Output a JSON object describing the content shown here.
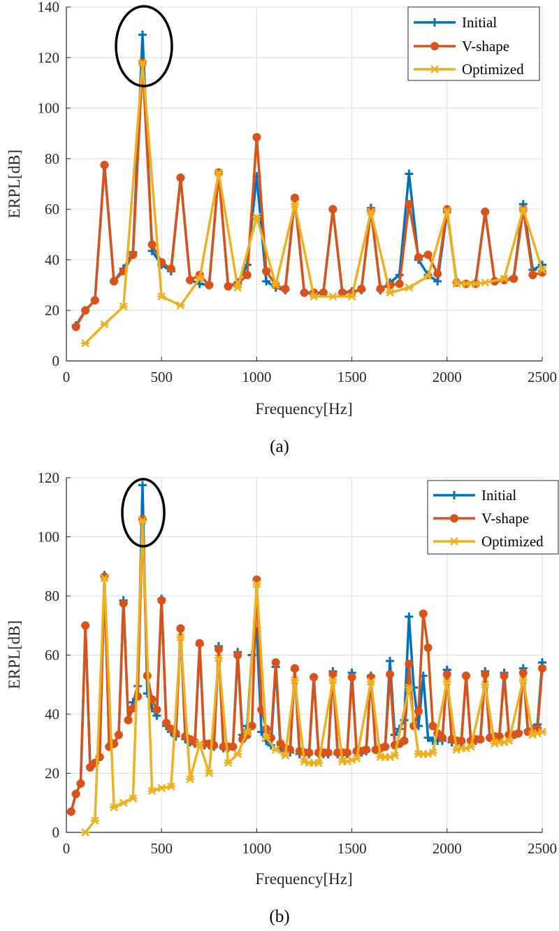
{
  "colors": {
    "Initial": "#0072BD",
    "V-shape": "#D95319",
    "Optimized": "#EDB120"
  },
  "chart_data": [
    {
      "type": "line",
      "caption": "(a)",
      "xlabel": "Frequency[Hz]",
      "ylabel": "ERPL[dB]",
      "xlim": [
        0,
        2500
      ],
      "ylim": [
        0,
        140
      ],
      "xticks": [
        0,
        500,
        1000,
        1500,
        2000,
        2500
      ],
      "yticks": [
        0,
        20,
        40,
        60,
        80,
        100,
        120,
        140
      ],
      "grid": true,
      "legend": {
        "placement": "top-right",
        "entries": [
          "Initial",
          "V-shape",
          "Optimized"
        ]
      },
      "annotation": "ellipse around peak near 400 Hz",
      "series": [
        {
          "name": "Initial",
          "marker": "plus",
          "x_start": 50,
          "x_step": 50,
          "y": [
            14,
            20,
            24,
            77.5,
            31.5,
            36.5,
            43,
            129,
            43.5,
            38,
            35.5,
            72.5,
            32,
            30.5,
            30,
            74.5,
            29.5,
            31,
            38,
            73,
            31.5,
            29,
            28,
            64,
            27,
            26.5,
            27,
            60,
            27,
            27.5,
            28,
            60.5,
            28,
            31,
            34,
            74,
            40,
            34,
            31.5,
            59,
            31,
            30.5,
            31,
            59,
            31.5,
            32,
            33,
            62,
            36,
            38
          ]
        },
        {
          "name": "V-shape",
          "marker": "circle",
          "x_start": 50,
          "x_step": 50,
          "y": [
            13.5,
            20,
            24,
            77.5,
            31.5,
            35.5,
            42,
            118,
            46,
            39,
            36.5,
            72.5,
            32,
            34,
            30,
            74.5,
            29.5,
            30.5,
            34,
            88.5,
            35.5,
            30,
            28.5,
            64.5,
            27,
            27,
            27,
            60,
            27,
            27,
            28.5,
            59.5,
            28.5,
            30,
            30.5,
            62,
            41,
            42,
            34.5,
            60,
            31,
            30.5,
            30.5,
            59,
            31.5,
            32,
            32.5,
            60,
            34,
            35
          ]
        },
        {
          "name": "Optimized",
          "marker": "star",
          "points": [
            [
              100,
              7
            ],
            [
              200,
              14.5
            ],
            [
              300,
              21.5
            ],
            [
              400,
              118
            ],
            [
              500,
              25.5
            ],
            [
              600,
              22
            ],
            [
              700,
              32.5
            ],
            [
              800,
              74.5
            ],
            [
              900,
              29
            ],
            [
              1000,
              57
            ],
            [
              1100,
              30
            ],
            [
              1200,
              62
            ],
            [
              1300,
              25.5
            ],
            [
              1400,
              25.5
            ],
            [
              1500,
              25.5
            ],
            [
              1600,
              59
            ],
            [
              1700,
              27
            ],
            [
              1800,
              29
            ],
            [
              1900,
              33.5
            ],
            [
              2000,
              59.5
            ],
            [
              2050,
              30.5
            ],
            [
              2100,
              30.5
            ],
            [
              2150,
              30.5
            ],
            [
              2200,
              31
            ],
            [
              2300,
              32.5
            ],
            [
              2400,
              60
            ],
            [
              2500,
              36
            ]
          ]
        }
      ]
    },
    {
      "type": "line",
      "caption": "(b)",
      "xlabel": "Frequency[Hz]",
      "ylabel": "ERPL[dB]",
      "xlim": [
        0,
        2500
      ],
      "ylim": [
        0,
        120
      ],
      "xticks": [
        0,
        500,
        1000,
        1500,
        2000,
        2500
      ],
      "yticks": [
        0,
        20,
        40,
        60,
        80,
        100,
        120
      ],
      "grid": true,
      "legend": {
        "placement": "top-right",
        "entries": [
          "Initial",
          "V-shape",
          "Optimized"
        ]
      },
      "annotation": "ellipse around peak near 400 Hz",
      "series": [
        {
          "name": "Initial",
          "marker": "plus",
          "x_start": 25,
          "x_step": 25,
          "y": [
            7,
            13,
            16.5,
            70,
            22,
            23.5,
            25.5,
            87,
            29,
            30,
            33,
            78.5,
            38,
            44,
            49.5,
            117.5,
            47,
            42,
            39.5,
            79,
            36,
            34,
            32.5,
            69,
            31.5,
            30.5,
            30,
            63.5,
            29.5,
            29.5,
            29,
            63,
            28.5,
            28.5,
            29,
            61,
            33,
            36,
            60,
            68,
            34,
            31,
            29.5,
            56,
            28.5,
            27.5,
            27,
            55,
            26.5,
            26.5,
            26.5,
            52.5,
            26.5,
            26.5,
            26.5,
            54.5,
            26.5,
            26.5,
            26.5,
            54,
            27,
            27,
            27.5,
            53,
            28,
            28.5,
            29,
            58,
            33,
            35,
            38,
            73,
            49,
            36,
            53,
            32,
            31,
            31,
            31,
            55,
            30.5,
            30.5,
            30.5,
            53,
            31,
            31,
            31.5,
            54.5,
            32,
            32,
            32.5,
            54,
            33,
            33,
            34,
            55.5,
            34.5,
            35,
            36.5,
            57.5
          ]
        },
        {
          "name": "V-shape",
          "marker": "circle",
          "x_start": 25,
          "x_step": 25,
          "y": [
            7,
            13,
            16.5,
            70,
            22,
            23.5,
            25.5,
            86.5,
            29,
            30,
            33,
            77.5,
            38,
            42,
            46,
            106,
            53,
            45,
            41.5,
            78.5,
            37,
            35,
            33.5,
            69,
            32.5,
            31.5,
            30.5,
            64,
            30,
            30,
            29.5,
            62,
            29,
            29,
            29,
            60,
            31.5,
            33,
            36,
            85.5,
            41.5,
            35,
            32,
            57.5,
            30,
            28.5,
            28,
            55.5,
            27.5,
            27,
            27,
            52.5,
            27,
            27,
            27,
            53.5,
            27,
            27,
            27,
            52.5,
            27.5,
            27.5,
            28,
            52.5,
            28,
            28.5,
            29,
            53.5,
            29.5,
            30,
            31,
            57,
            36,
            41,
            74,
            62.5,
            36,
            33.5,
            32,
            53.5,
            31.5,
            31,
            31,
            53,
            31,
            31.5,
            31.5,
            53.5,
            32,
            32.5,
            32.5,
            53,
            33,
            33,
            33.5,
            54,
            34,
            34.5,
            35,
            55.5
          ]
        },
        {
          "name": "Optimized",
          "marker": "star",
          "points": [
            [
              100,
              0
            ],
            [
              150,
              4
            ],
            [
              200,
              86
            ],
            [
              250,
              8.5
            ],
            [
              300,
              10
            ],
            [
              350,
              11.5
            ],
            [
              400,
              105.5
            ],
            [
              450,
              14
            ],
            [
              500,
              15
            ],
            [
              550,
              15.5
            ],
            [
              600,
              66
            ],
            [
              650,
              18
            ],
            [
              700,
              30
            ],
            [
              750,
              20
            ],
            [
              800,
              59
            ],
            [
              850,
              23.5
            ],
            [
              900,
              26.5
            ],
            [
              950,
              34
            ],
            [
              1000,
              84
            ],
            [
              1050,
              32
            ],
            [
              1100,
              28
            ],
            [
              1150,
              26
            ],
            [
              1200,
              51.5
            ],
            [
              1250,
              24
            ],
            [
              1275,
              23.5
            ],
            [
              1300,
              23.5
            ],
            [
              1325,
              23.5
            ],
            [
              1400,
              51.5
            ],
            [
              1450,
              24
            ],
            [
              1475,
              24
            ],
            [
              1500,
              24.5
            ],
            [
              1525,
              25
            ],
            [
              1600,
              51
            ],
            [
              1650,
              25.5
            ],
            [
              1675,
              25.5
            ],
            [
              1700,
              25.5
            ],
            [
              1725,
              26
            ],
            [
              1800,
              49
            ],
            [
              1850,
              26.5
            ],
            [
              1875,
              26.5
            ],
            [
              1900,
              26.5
            ],
            [
              1925,
              27
            ],
            [
              2000,
              51
            ],
            [
              2050,
              28
            ],
            [
              2075,
              28.5
            ],
            [
              2100,
              28.5
            ],
            [
              2125,
              29
            ],
            [
              2200,
              50
            ],
            [
              2250,
              30
            ],
            [
              2275,
              30.5
            ],
            [
              2300,
              30.5
            ],
            [
              2325,
              31
            ],
            [
              2400,
              51.5
            ],
            [
              2450,
              33
            ],
            [
              2475,
              33.5
            ],
            [
              2500,
              34
            ]
          ]
        }
      ]
    }
  ]
}
